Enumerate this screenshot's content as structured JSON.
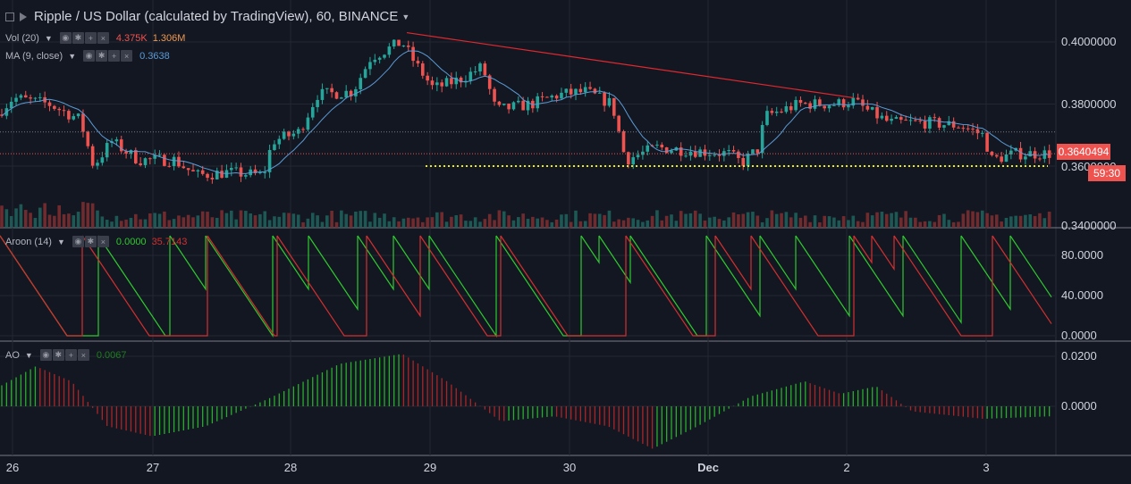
{
  "header": {
    "title": "Ripple / US Dollar (calculated by TradingView), 60, BINANCE",
    "vol_label": "Vol (20)",
    "vol_value1": "4.375K",
    "vol_value2": "1.306M",
    "ma_label": "MA (9, close)",
    "ma_value": "0.3638",
    "aroon_label": "Aroon (14)",
    "aroon_up": "0.0000",
    "aroon_down": "35.7143",
    "ao_label": "AO",
    "ao_value": "0.0067"
  },
  "colors": {
    "up": "#26a69a",
    "down": "#ef5350",
    "ma": "#5b9bd5",
    "aroon_up": "#2ec82e",
    "aroon_down": "#d32f2f",
    "support": "#e8e82a",
    "trend": "#e0282e"
  },
  "price_axis": {
    "ticks": [
      "0.4000000",
      "0.3800000",
      "0.3600000",
      "0.3400000"
    ],
    "last_price": "0.3640494",
    "countdown": "59:30"
  },
  "aroon_axis": {
    "ticks": [
      "80.0000",
      "40.0000",
      "0.0000"
    ]
  },
  "ao_axis": {
    "ticks": [
      "0.0200",
      "0.0000"
    ]
  },
  "time_axis": {
    "labels": [
      "26",
      "27",
      "28",
      "29",
      "30",
      "Dec",
      "2",
      "3"
    ]
  },
  "chart_data": {
    "type": "candlestick",
    "interval": "60",
    "ylim": [
      0.34,
      0.41
    ],
    "support_level": 0.36,
    "trendline": [
      {
        "x": "28 22:00",
        "y": 0.403
      },
      {
        "x": "2 00:00",
        "y": 0.382
      }
    ],
    "ma_last": 0.3638,
    "aroon_last": {
      "up": 0.0,
      "down": 35.7143
    },
    "ao_last": 0.0067
  }
}
